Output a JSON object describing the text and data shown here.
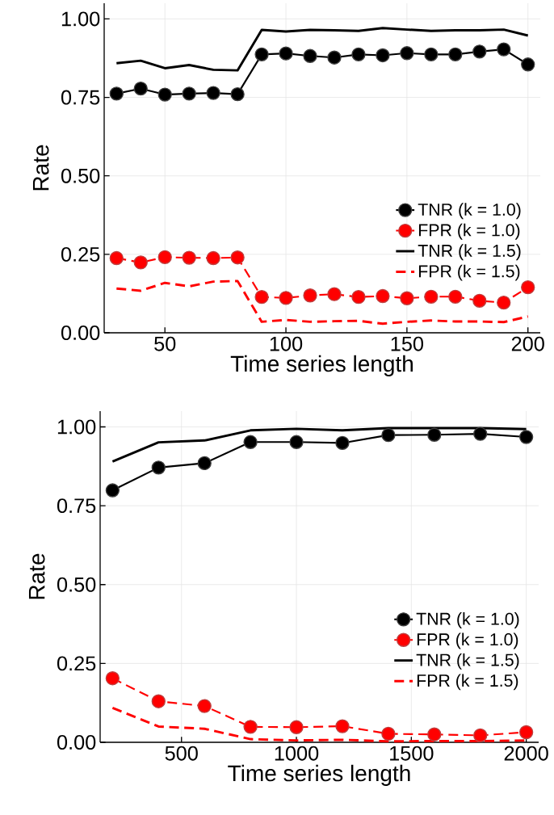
{
  "chart_data": [
    {
      "type": "line",
      "xlabel": "Time series length",
      "ylabel": "Rate",
      "xlim": [
        24.9,
        205.1
      ],
      "ylim": [
        0,
        1.05
      ],
      "xticks": [
        50,
        100,
        150,
        200
      ],
      "yticks": [
        {
          "value": 0,
          "label": "0.00"
        },
        {
          "value": 0.25,
          "label": "0.25"
        },
        {
          "value": 0.5,
          "label": "0.50"
        },
        {
          "value": 0.75,
          "label": "0.75"
        },
        {
          "value": 1,
          "label": "1.00"
        }
      ],
      "grid": true,
      "legend": "bottom right",
      "x": [
        30,
        40,
        50,
        60,
        70,
        80,
        90,
        100,
        110,
        120,
        130,
        140,
        150,
        160,
        170,
        180,
        190,
        200
      ],
      "series": [
        {
          "name": "TNR (k = 1.0)",
          "color": "#000000",
          "marker": "circle",
          "line_style": "solid",
          "values": [
            0.762,
            0.778,
            0.759,
            0.762,
            0.764,
            0.76,
            0.887,
            0.89,
            0.882,
            0.877,
            0.887,
            0.884,
            0.891,
            0.887,
            0.887,
            0.896,
            0.903,
            0.855
          ]
        },
        {
          "name": "FPR (k = 1.0)",
          "color": "#ff0000",
          "marker": "circle",
          "line_style": "dashed",
          "values": [
            0.238,
            0.224,
            0.241,
            0.239,
            0.238,
            0.24,
            0.114,
            0.111,
            0.119,
            0.123,
            0.114,
            0.117,
            0.11,
            0.115,
            0.115,
            0.102,
            0.096,
            0.145
          ]
        },
        {
          "name": "TNR (k = 1.5)",
          "color": "#000000",
          "marker": "none",
          "line_style": "solid",
          "values": [
            0.859,
            0.867,
            0.843,
            0.853,
            0.838,
            0.836,
            0.965,
            0.96,
            0.965,
            0.964,
            0.962,
            0.971,
            0.966,
            0.962,
            0.964,
            0.964,
            0.966,
            0.947
          ]
        },
        {
          "name": "FPR (k = 1.5)",
          "color": "#ff0000",
          "marker": "none",
          "line_style": "dashed",
          "values": [
            0.141,
            0.134,
            0.159,
            0.148,
            0.163,
            0.165,
            0.035,
            0.041,
            0.035,
            0.037,
            0.038,
            0.029,
            0.035,
            0.039,
            0.036,
            0.036,
            0.034,
            0.052
          ]
        }
      ]
    },
    {
      "type": "line",
      "xlabel": "Time series length",
      "ylabel": "Rate",
      "xlim": [
        146,
        2054
      ],
      "ylim": [
        0,
        1.05
      ],
      "xticks": [
        500,
        1000,
        1500,
        2000
      ],
      "yticks": [
        {
          "value": 0,
          "label": "0.00"
        },
        {
          "value": 0.25,
          "label": "0.25"
        },
        {
          "value": 0.5,
          "label": "0.50"
        },
        {
          "value": 0.75,
          "label": "0.75"
        },
        {
          "value": 1,
          "label": "1.00"
        }
      ],
      "grid": true,
      "legend": "bottom right",
      "x": [
        200,
        400,
        600,
        800,
        1000,
        1200,
        1400,
        1600,
        1800,
        2000
      ],
      "series": [
        {
          "name": "TNR (k = 1.0)",
          "color": "#000000",
          "marker": "circle",
          "line_style": "solid",
          "values": [
            0.799,
            0.871,
            0.885,
            0.952,
            0.952,
            0.949,
            0.974,
            0.975,
            0.978,
            0.968
          ]
        },
        {
          "name": "FPR (k = 1.0)",
          "color": "#ff0000",
          "marker": "circle",
          "line_style": "dashed",
          "values": [
            0.203,
            0.13,
            0.115,
            0.049,
            0.048,
            0.051,
            0.027,
            0.025,
            0.022,
            0.032
          ]
        },
        {
          "name": "TNR (k = 1.5)",
          "color": "#000000",
          "marker": "none",
          "line_style": "solid",
          "values": [
            0.89,
            0.951,
            0.957,
            0.989,
            0.994,
            0.989,
            0.996,
            0.996,
            0.996,
            0.993
          ]
        },
        {
          "name": "FPR (k = 1.5)",
          "color": "#ff0000",
          "marker": "none",
          "line_style": "dashed",
          "values": [
            0.109,
            0.05,
            0.043,
            0.01,
            0.006,
            0.008,
            0.003,
            0.004,
            0.004,
            0.006
          ]
        }
      ]
    }
  ]
}
